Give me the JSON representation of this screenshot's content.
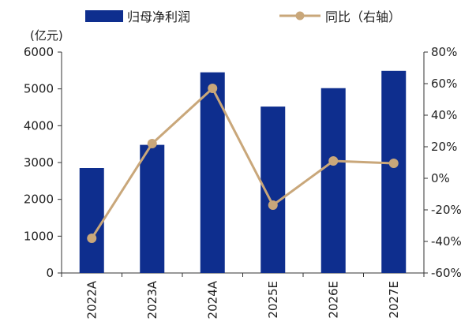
{
  "chart_data": {
    "type": "bar",
    "title": "",
    "categories": [
      "2022A",
      "2023A",
      "2024A",
      "2025E",
      "2026E",
      "2027E"
    ],
    "series": [
      {
        "name": "归母净利润",
        "type": "bar",
        "axis": "left",
        "color": "#0E2E8E",
        "values": [
          2850,
          3480,
          5450,
          4520,
          5020,
          5490
        ]
      },
      {
        "name": "同比（右轴）",
        "type": "line",
        "axis": "right",
        "color": "#C9A77A",
        "values": [
          -38,
          22,
          57,
          -17,
          11,
          9.5
        ]
      }
    ],
    "y_left": {
      "unit_label": "(亿元)",
      "min": 0,
      "max": 6000,
      "step": 1000,
      "ticks": [
        "0",
        "1000",
        "2000",
        "3000",
        "4000",
        "5000",
        "6000"
      ]
    },
    "y_right": {
      "min": -60,
      "max": 80,
      "step": 20,
      "ticks": [
        "-60%",
        "-40%",
        "-20%",
        "0%",
        "20%",
        "40%",
        "60%",
        "80%"
      ]
    },
    "grid": false,
    "legend_position": "top"
  }
}
